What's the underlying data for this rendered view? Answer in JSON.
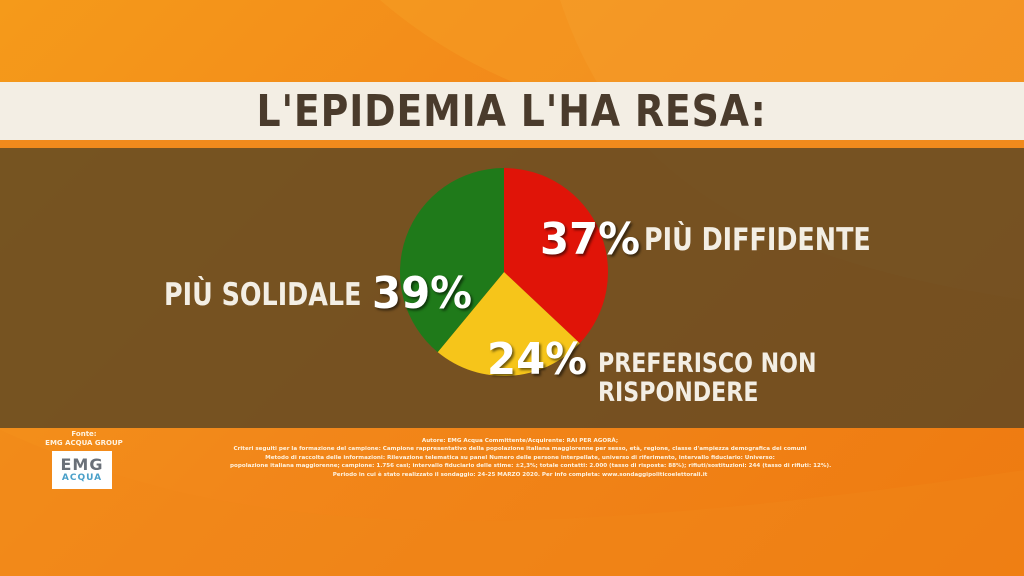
{
  "header": {
    "title": "L'EPIDEMIA L'HA RESA:"
  },
  "chart_data": {
    "type": "pie",
    "title": "L'EPIDEMIA L'HA RESA:",
    "slices": [
      {
        "label": "PIÙ DIFFIDENTE",
        "value": 37,
        "display": "37%",
        "color": "#e01408"
      },
      {
        "label": "PREFERISCO NON RISPONDERE",
        "value": 24,
        "display": "24%",
        "color": "#f6c51a"
      },
      {
        "label": "PIÙ SOLIDALE",
        "value": 39,
        "display": "39%",
        "color": "#1f7a1a"
      }
    ]
  },
  "labels": {
    "diffidente": "PIÙ DIFFIDENTE",
    "preferisco_line1": "PREFERISCO NON",
    "preferisco_line2": "RISPONDERE",
    "solidale": "PIÙ SOLIDALE"
  },
  "source": {
    "label": "Fonte:",
    "name": "EMG ACQUA GROUP",
    "logo_main": "EMG",
    "logo_sub": "ACQUA"
  },
  "notes": [
    "Autore: EMG Acqua Committente/Acquirente: RAI PER AGORÀ;",
    "Criteri seguiti per la formazione del campione: Campione rappresentativo della popolazione italiana maggiorenne per sesso, età, regione, classe d'ampiezza demografica dei comuni",
    "Metodo di raccolta delle informazioni: Rilevazione telematica su panel Numero delle persone interpellate, universo di riferimento, intervallo fiduciario: Universo:",
    "popolazione italiana maggiorenne; campione: 1.756 casi; intervallo fiduciario delle stime: ±2,3%; totale contatti: 2.000 (tasso di risposta: 88%); rifiuti/sostituzioni: 244 (tasso di rifiuti: 12%).",
    "Periodo in cui è stato realizzato il sondaggio: 24-25 MARZO 2020. Per info completa: www.sondaggipoliticoelettorali.it"
  ]
}
